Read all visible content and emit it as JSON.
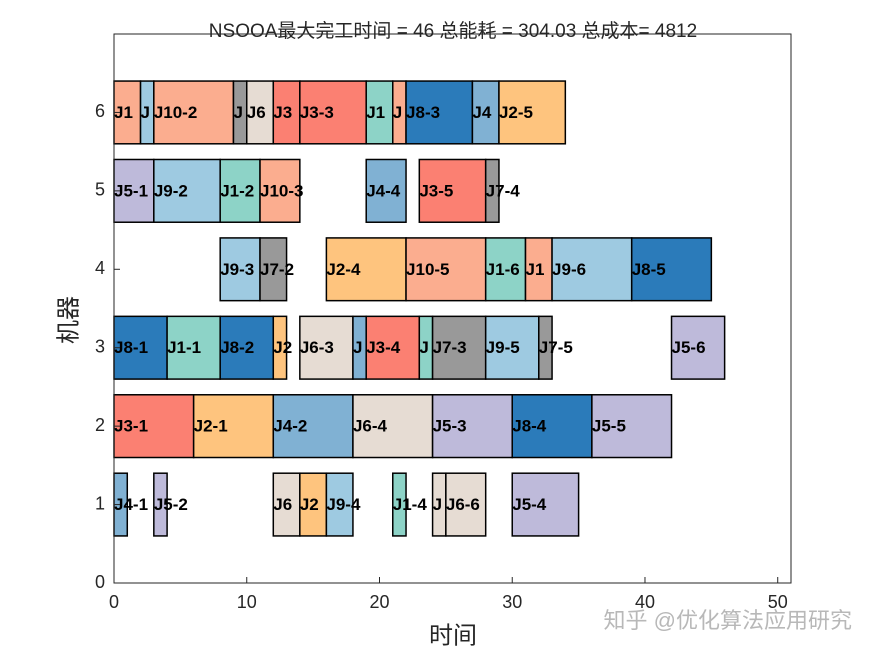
{
  "chart_data": {
    "type": "gantt",
    "title": "NSOOA最大完工时间 = 46 总能耗 = 304.03 总成本= 4812",
    "x_label": "时间",
    "y_label": "机器",
    "xlim": [
      0,
      51
    ],
    "xticks": [
      0,
      10,
      20,
      30,
      40,
      50
    ],
    "ylim": [
      0,
      7
    ],
    "yticks": [
      0,
      1,
      2,
      3,
      4,
      5,
      6
    ],
    "bar_height": 0.8,
    "watermark": "知乎 @优化算法应用研究",
    "tasks": [
      {
        "machine": 6,
        "start": 0,
        "end": 2,
        "label": "J1",
        "color": "#fbad8f"
      },
      {
        "machine": 6,
        "start": 2,
        "end": 3,
        "label": "J",
        "color": "#9ecae1"
      },
      {
        "machine": 6,
        "start": 3,
        "end": 9,
        "label": "J10-2",
        "color": "#fbad8f"
      },
      {
        "machine": 6,
        "start": 9,
        "end": 10,
        "label": "J",
        "color": "#999999"
      },
      {
        "machine": 6,
        "start": 10,
        "end": 12,
        "label": "J6",
        "color": "#e6dcd3"
      },
      {
        "machine": 6,
        "start": 12,
        "end": 14,
        "label": "J3",
        "color": "#fb8072"
      },
      {
        "machine": 6,
        "start": 14,
        "end": 19,
        "label": "J3-3",
        "color": "#fb8072"
      },
      {
        "machine": 6,
        "start": 19,
        "end": 21,
        "label": "J1",
        "color": "#8dd3c7"
      },
      {
        "machine": 6,
        "start": 21,
        "end": 22,
        "label": "J",
        "color": "#fbad8f"
      },
      {
        "machine": 6,
        "start": 22,
        "end": 27,
        "label": "J8-3",
        "color": "#2b7bba"
      },
      {
        "machine": 6,
        "start": 27,
        "end": 29,
        "label": "J4",
        "color": "#80b1d3"
      },
      {
        "machine": 6,
        "start": 29,
        "end": 34,
        "label": "J2-5",
        "color": "#fec47e"
      },
      {
        "machine": 5,
        "start": 0,
        "end": 3,
        "label": "J5-1",
        "color": "#bebada"
      },
      {
        "machine": 5,
        "start": 3,
        "end": 8,
        "label": "J9-2",
        "color": "#9ecae1"
      },
      {
        "machine": 5,
        "start": 8,
        "end": 11,
        "label": "J1-2",
        "color": "#8dd3c7"
      },
      {
        "machine": 5,
        "start": 11,
        "end": 14,
        "label": "J10-3",
        "color": "#fbad8f"
      },
      {
        "machine": 5,
        "start": 19,
        "end": 22,
        "label": "J4-4",
        "color": "#80b1d3"
      },
      {
        "machine": 5,
        "start": 23,
        "end": 28,
        "label": "J3-5",
        "color": "#fb8072"
      },
      {
        "machine": 5,
        "start": 28,
        "end": 29,
        "label": "J7-4",
        "color": "#999999"
      },
      {
        "machine": 4,
        "start": 8,
        "end": 11,
        "label": "J9-3",
        "color": "#9ecae1"
      },
      {
        "machine": 4,
        "start": 11,
        "end": 13,
        "label": "J7-2",
        "color": "#999999"
      },
      {
        "machine": 4,
        "start": 16,
        "end": 22,
        "label": "J2-4",
        "color": "#fec47e"
      },
      {
        "machine": 4,
        "start": 22,
        "end": 28,
        "label": "J10-5",
        "color": "#fbad8f"
      },
      {
        "machine": 4,
        "start": 28,
        "end": 31,
        "label": "J1-6",
        "color": "#8dd3c7"
      },
      {
        "machine": 4,
        "start": 31,
        "end": 33,
        "label": "J1",
        "color": "#fbad8f"
      },
      {
        "machine": 4,
        "start": 33,
        "end": 39,
        "label": "J9-6",
        "color": "#9ecae1"
      },
      {
        "machine": 4,
        "start": 39,
        "end": 45,
        "label": "J8-5",
        "color": "#2b7bba"
      },
      {
        "machine": 3,
        "start": 0,
        "end": 4,
        "label": "J8-1",
        "color": "#2b7bba"
      },
      {
        "machine": 3,
        "start": 4,
        "end": 8,
        "label": "J1-1",
        "color": "#8dd3c7"
      },
      {
        "machine": 3,
        "start": 8,
        "end": 12,
        "label": "J8-2",
        "color": "#2b7bba"
      },
      {
        "machine": 3,
        "start": 12,
        "end": 13,
        "label": "J2",
        "color": "#fec47e"
      },
      {
        "machine": 3,
        "start": 14,
        "end": 18,
        "label": "J6-3",
        "color": "#e6dcd3"
      },
      {
        "machine": 3,
        "start": 18,
        "end": 19,
        "label": "J",
        "color": "#80b1d3"
      },
      {
        "machine": 3,
        "start": 19,
        "end": 23,
        "label": "J3-4",
        "color": "#fb8072"
      },
      {
        "machine": 3,
        "start": 23,
        "end": 24,
        "label": "J",
        "color": "#8dd3c7"
      },
      {
        "machine": 3,
        "start": 24,
        "end": 28,
        "label": "J7-3",
        "color": "#999999"
      },
      {
        "machine": 3,
        "start": 28,
        "end": 32,
        "label": "J9-5",
        "color": "#9ecae1"
      },
      {
        "machine": 3,
        "start": 32,
        "end": 33,
        "label": "J7-5",
        "color": "#999999"
      },
      {
        "machine": 3,
        "start": 42,
        "end": 46,
        "label": "J5-6",
        "color": "#bebada"
      },
      {
        "machine": 2,
        "start": 0,
        "end": 6,
        "label": "J3-1",
        "color": "#fb8072"
      },
      {
        "machine": 2,
        "start": 6,
        "end": 12,
        "label": "J2-1",
        "color": "#fec47e"
      },
      {
        "machine": 2,
        "start": 12,
        "end": 18,
        "label": "J4-2",
        "color": "#80b1d3"
      },
      {
        "machine": 2,
        "start": 18,
        "end": 24,
        "label": "J6-4",
        "color": "#e6dcd3"
      },
      {
        "machine": 2,
        "start": 24,
        "end": 30,
        "label": "J5-3",
        "color": "#bebada"
      },
      {
        "machine": 2,
        "start": 30,
        "end": 36,
        "label": "J8-4",
        "color": "#2b7bba"
      },
      {
        "machine": 2,
        "start": 36,
        "end": 42,
        "label": "J5-5",
        "color": "#bebada"
      },
      {
        "machine": 1,
        "start": 0,
        "end": 1,
        "label": "J4-1",
        "color": "#80b1d3"
      },
      {
        "machine": 1,
        "start": 3,
        "end": 4,
        "label": "J5-2",
        "color": "#bebada"
      },
      {
        "machine": 1,
        "start": 12,
        "end": 14,
        "label": "J6",
        "color": "#e6dcd3"
      },
      {
        "machine": 1,
        "start": 14,
        "end": 16,
        "label": "J2",
        "color": "#fec47e"
      },
      {
        "machine": 1,
        "start": 16,
        "end": 18,
        "label": "J9-4",
        "color": "#9ecae1"
      },
      {
        "machine": 1,
        "start": 21,
        "end": 22,
        "label": "J1-4",
        "color": "#8dd3c7"
      },
      {
        "machine": 1,
        "start": 24,
        "end": 25,
        "label": "J",
        "color": "#e6dcd3"
      },
      {
        "machine": 1,
        "start": 25,
        "end": 28,
        "label": "J6-6",
        "color": "#e6dcd3"
      },
      {
        "machine": 1,
        "start": 30,
        "end": 35,
        "label": "J5-4",
        "color": "#bebada"
      }
    ]
  }
}
